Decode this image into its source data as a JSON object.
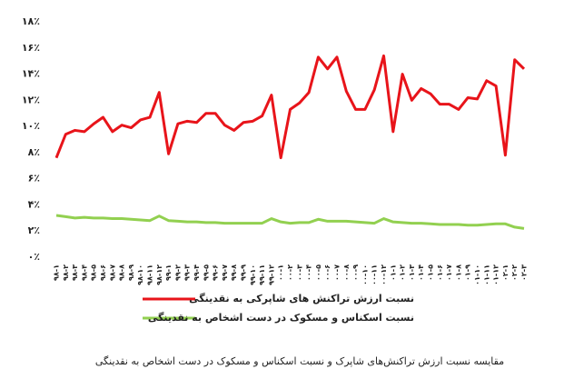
{
  "chart_data": {
    "type": "line",
    "categories": [
      "۹۸-۱",
      "۹۸-۲",
      "۹۸-۳",
      "۹۸-۴",
      "۹۸-۵",
      "۹۸-۶",
      "۹۸-۷",
      "۹۸-۸",
      "۹۸-۹",
      "۹۸-۱۰",
      "۹۸-۱۱",
      "۹۸-۱۲",
      "۹۹-۱",
      "۹۹-۲",
      "۹۹-۳",
      "۹۹-۴",
      "۹۹-۵",
      "۹۹-۶",
      "۹۹-۷",
      "۹۹-۸",
      "۹۹-۹",
      "۹۹-۱۰",
      "۹۹-۱۱",
      "۹۹-۱۲",
      "۰۰-۱",
      "۰۰-۲",
      "۰۰-۳",
      "۰۰-۴",
      "۰۰-۵",
      "۰۰-۶",
      "۰۰-۷",
      "۰۰-۸",
      "۰۰-۹",
      "۰۰-۱۰",
      "۰۰-۱۱",
      "۰۰-۱۲",
      "۰۱-۱",
      "۰۱-۲",
      "۰۱-۳",
      "۰۱-۴",
      "۰۱-۵",
      "۰۱-۶",
      "۰۱-۷",
      "۰۱-۸",
      "۰۱-۹",
      "۰۱-۱۰",
      "۰۱-۱۱",
      "۰۱-۱۲",
      "۰۲-۱",
      "۰۲-۲",
      "۰۲-۳"
    ],
    "series": [
      {
        "name": "نسبت ارزش تراکنش های شاپرکی به نقدینگی",
        "color": "#e8141a",
        "values": [
          7.6,
          9.4,
          9.7,
          9.6,
          10.2,
          10.7,
          9.6,
          10.1,
          9.9,
          10.5,
          10.7,
          12.6,
          7.9,
          10.2,
          10.4,
          10.3,
          11.0,
          11.0,
          10.1,
          9.7,
          10.3,
          10.4,
          10.8,
          12.4,
          7.6,
          11.3,
          11.8,
          12.6,
          15.3,
          14.4,
          15.3,
          12.7,
          11.3,
          11.3,
          12.8,
          15.4,
          9.6,
          14.0,
          12.0,
          12.9,
          12.5,
          11.7,
          11.7,
          11.3,
          12.2,
          12.1,
          13.5,
          13.1,
          7.8,
          15.1,
          14.4
        ]
      },
      {
        "name": "نسبت اسکناس و مسکوک در دست اشخاص به نقدینگی",
        "color": "#92d050",
        "values": [
          3.2,
          3.1,
          3.0,
          3.05,
          3.0,
          3.0,
          2.95,
          2.95,
          2.9,
          2.85,
          2.8,
          3.15,
          2.8,
          2.75,
          2.7,
          2.7,
          2.65,
          2.65,
          2.6,
          2.6,
          2.6,
          2.6,
          2.6,
          2.95,
          2.7,
          2.6,
          2.65,
          2.65,
          2.9,
          2.75,
          2.75,
          2.75,
          2.7,
          2.65,
          2.6,
          2.95,
          2.7,
          2.65,
          2.6,
          2.6,
          2.55,
          2.5,
          2.5,
          2.5,
          2.45,
          2.45,
          2.5,
          2.55,
          2.55,
          2.3,
          2.2
        ]
      }
    ],
    "ylim": [
      0,
      18
    ],
    "yticks": [
      {
        "value": 0,
        "label": "۰٪"
      },
      {
        "value": 2,
        "label": "۲٪"
      },
      {
        "value": 4,
        "label": "۴٪"
      },
      {
        "value": 6,
        "label": "۶٪"
      },
      {
        "value": 8,
        "label": "۸٪"
      },
      {
        "value": 10,
        "label": "۱۰٪"
      },
      {
        "value": 12,
        "label": "۱۲٪"
      },
      {
        "value": 14,
        "label": "۱۴٪"
      },
      {
        "value": 16,
        "label": "۱۶٪"
      },
      {
        "value": 18,
        "label": "۱۸٪"
      }
    ],
    "caption": "مقایسه نسبت ارزش تراکنش‌های شاپرک و نسبت اسکناس و مسکوک در دست اشخاص به نقدینگی"
  }
}
